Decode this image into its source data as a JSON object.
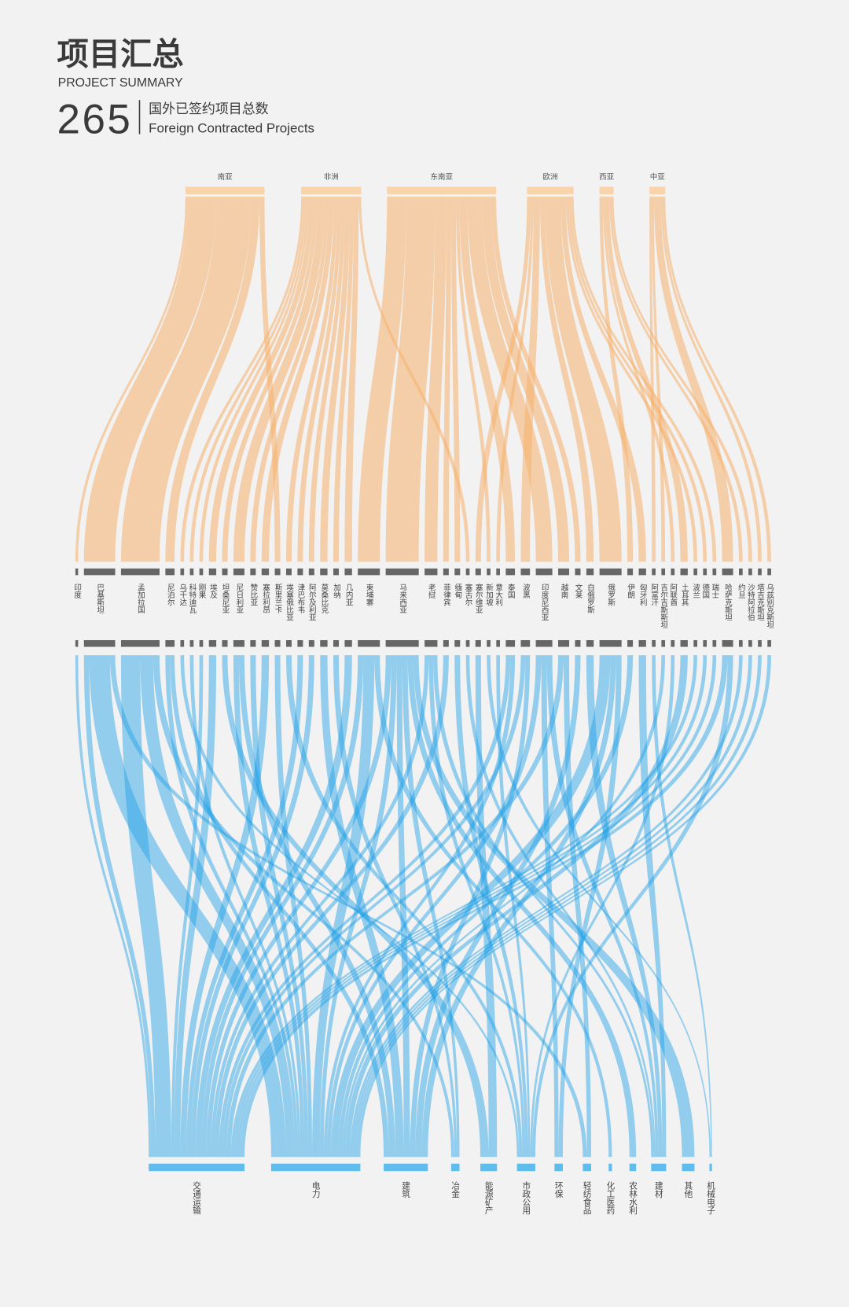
{
  "header": {
    "title": "项目汇总",
    "subtitle": "PROJECT SUMMARY",
    "total": 265,
    "total_label": "国外已签约项目总数",
    "total_label_en": "Foreign Contracted Projects"
  },
  "regions": [
    "南亚",
    "非洲",
    "东南亚",
    "欧洲",
    "西亚",
    "中亚"
  ],
  "countries": [
    "印度",
    "巴基斯坦",
    "孟加拉国",
    "尼泊尔",
    "乌干达",
    "科特迪瓦",
    "刚果",
    "埃及",
    "坦桑尼亚",
    "尼日利亚",
    "赞比亚",
    "塞拉利昂",
    "斯里兰卡",
    "埃塞俄比亚",
    "津巴布韦",
    "阿尔及利亚",
    "莫桑比克",
    "加纳",
    "几内亚",
    "柬埔寨",
    "马来西亚",
    "老挝",
    "菲律宾",
    "缅甸",
    "塞舌尔",
    "塞尔维亚",
    "新加坡",
    "意大利",
    "泰国",
    "波黑",
    "印度尼西亚",
    "越南",
    "文莱",
    "白俄罗斯",
    "俄罗斯",
    "伊朗",
    "匈牙利",
    "阿富汗",
    "吉尔吉斯斯坦",
    "阿联酋",
    "土耳其",
    "波兰",
    "德国",
    "瑞士",
    "哈萨克斯坦",
    "约旦",
    "沙特阿拉伯",
    "塔吉克斯坦",
    "乌兹别克斯坦"
  ],
  "sectors": [
    "交通运输",
    "电力",
    "建筑",
    "冶金",
    "能源矿产",
    "市政公用",
    "环保",
    "轻纺食品",
    "化工医药",
    "农林水利",
    "建材",
    "其他",
    "机械电子"
  ]
}
